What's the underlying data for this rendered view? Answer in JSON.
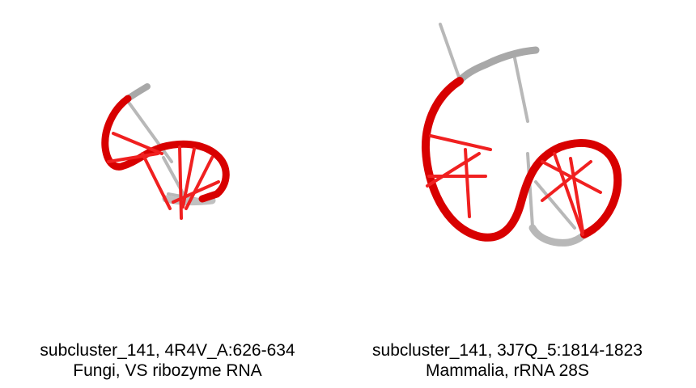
{
  "panels": [
    {
      "id": "left",
      "caption_line1": "subcluster_141, 4R4V_A:626-634",
      "caption_line2": "Fungi, VS ribozyme RNA"
    },
    {
      "id": "right",
      "caption_line1": "subcluster_141, 3J7Q_5:1814-1823",
      "caption_line2": "Mammalia, rRNA 28S"
    }
  ],
  "colors": {
    "backbone_red": "#e00000",
    "backbone_dark_red": "#b00000",
    "backbone_gray": "#a8a8a8",
    "base_red": "#f02020",
    "base_gray": "#b8b8b8"
  }
}
